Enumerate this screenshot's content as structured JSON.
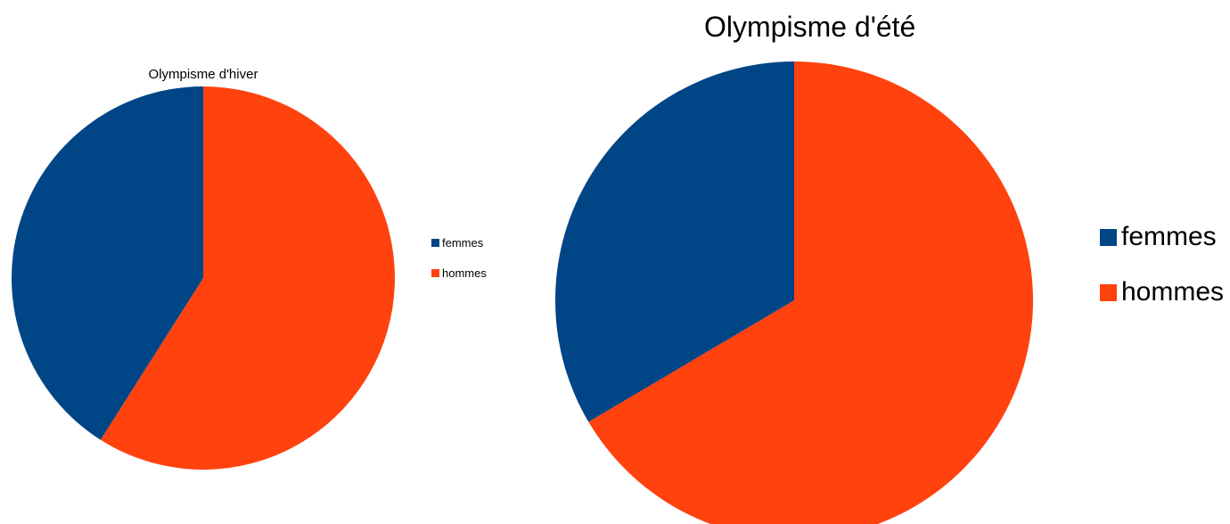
{
  "chart_data": [
    {
      "type": "pie",
      "title": "Olympisme d'hiver",
      "categories": [
        "femmes",
        "hommes"
      ],
      "values": [
        41,
        59
      ],
      "colors": [
        "#004586",
        "#ff420e"
      ],
      "legend_position": "right"
    },
    {
      "type": "pie",
      "title": "Olympisme d'été",
      "categories": [
        "femmes",
        "hommes"
      ],
      "values": [
        33.5,
        66.5
      ],
      "colors": [
        "#004586",
        "#ff420e"
      ],
      "legend_position": "right"
    }
  ]
}
